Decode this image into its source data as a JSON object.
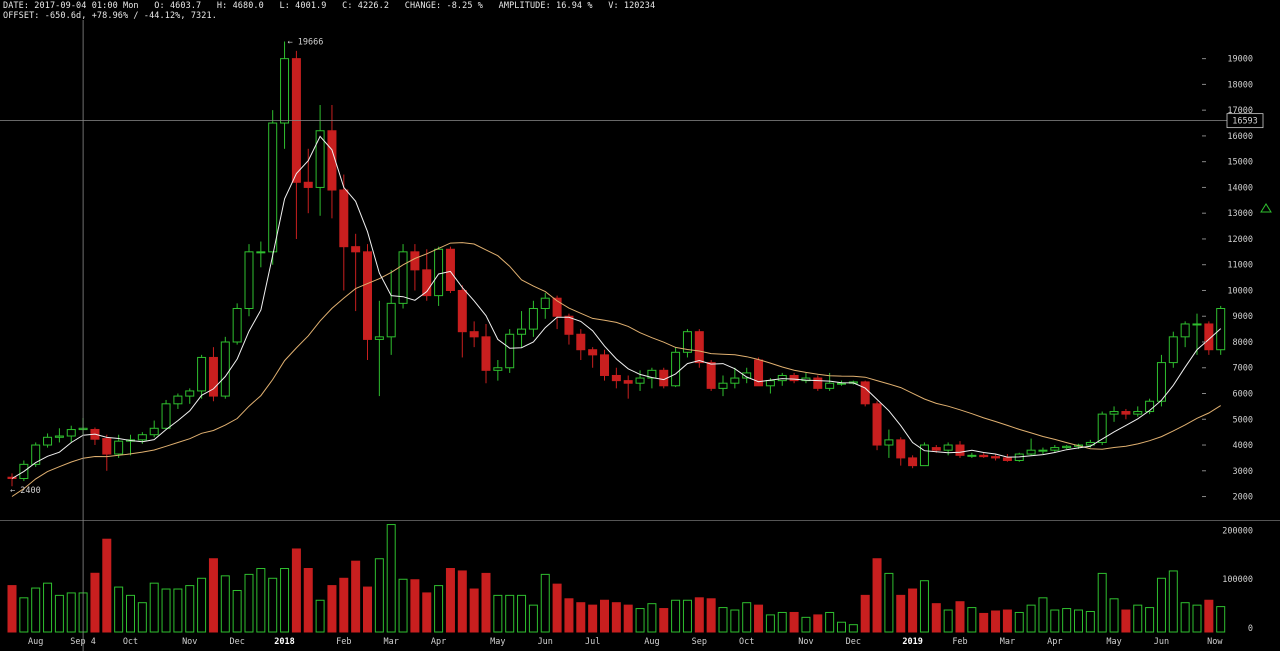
{
  "header": {
    "line1": "DATE: 2017-09-04 01:00 Mon   O: 4603.7   H: 4680.0   L: 4001.9   C: 4226.2   CHANGE: -8.25 %   AMPLITUDE: 16.94 %   V: 120234",
    "line2": "OFFSET: -650.6d, +78.96% / -44.12%, 7321."
  },
  "colors": {
    "background": "#000000",
    "up": "#2fbf2f",
    "down": "#c81f1f",
    "ma_short": "#f0f0f0",
    "ma_long": "#e0b070",
    "crosshair": "#8a8a8a",
    "axis_text": "#d0d0d0"
  },
  "crosshair": {
    "price_label": "16593",
    "date_label": "Sep 4"
  },
  "annotations": {
    "high_label": "← 19666",
    "low_label": "← 2400"
  },
  "chart_data": {
    "type": "candlestick",
    "period": "weekly",
    "y_ticks": [
      2000,
      3000,
      4000,
      5000,
      6000,
      7000,
      8000,
      9000,
      10000,
      11000,
      12000,
      13000,
      14000,
      15000,
      16000,
      17000,
      18000,
      19000
    ],
    "ylim": [
      1400,
      20500
    ],
    "volume_ticks": [
      {
        "value": 0,
        "label": "0"
      },
      {
        "value": 100000,
        "label": "100000"
      },
      {
        "value": 200000,
        "label": "200000"
      }
    ],
    "volume_ylim": [
      0,
      215000
    ],
    "x_labels": [
      {
        "label": "Aug",
        "i": 2
      },
      {
        "label": "Sep 4",
        "i": 6
      },
      {
        "label": "Oct",
        "i": 10
      },
      {
        "label": "Nov",
        "i": 15
      },
      {
        "label": "Dec",
        "i": 19
      },
      {
        "label": "2018",
        "i": 23,
        "bold": true
      },
      {
        "label": "Feb",
        "i": 28
      },
      {
        "label": "Mar",
        "i": 32
      },
      {
        "label": "Apr",
        "i": 36
      },
      {
        "label": "May",
        "i": 41
      },
      {
        "label": "Jun",
        "i": 45
      },
      {
        "label": "Jul",
        "i": 49
      },
      {
        "label": "Aug",
        "i": 54
      },
      {
        "label": "Sep",
        "i": 58
      },
      {
        "label": "Oct",
        "i": 62
      },
      {
        "label": "Nov",
        "i": 67
      },
      {
        "label": "Dec",
        "i": 71
      },
      {
        "label": "2019",
        "i": 76,
        "bold": true
      },
      {
        "label": "Feb",
        "i": 80
      },
      {
        "label": "Mar",
        "i": 84
      },
      {
        "label": "Apr",
        "i": 88
      },
      {
        "label": "May",
        "i": 93
      },
      {
        "label": "Jun",
        "i": 97
      },
      {
        "label": "Now",
        "i": 101.5
      }
    ],
    "candles": [
      {
        "o": 2750,
        "h": 2900,
        "l": 2400,
        "c": 2700,
        "v": 95000
      },
      {
        "o": 2700,
        "h": 3400,
        "l": 2600,
        "c": 3250,
        "v": 70000
      },
      {
        "o": 3250,
        "h": 4100,
        "l": 3150,
        "c": 4000,
        "v": 90000
      },
      {
        "o": 4000,
        "h": 4450,
        "l": 3900,
        "c": 4300,
        "v": 100000
      },
      {
        "o": 4300,
        "h": 4650,
        "l": 4100,
        "c": 4350,
        "v": 75000
      },
      {
        "o": 4350,
        "h": 4750,
        "l": 4100,
        "c": 4600,
        "v": 80000
      },
      {
        "o": 4600,
        "h": 5050,
        "l": 4400,
        "c": 4650,
        "v": 80000
      },
      {
        "o": 4603.7,
        "h": 4680,
        "l": 4001.9,
        "c": 4226.2,
        "v": 120234
      },
      {
        "o": 4250,
        "h": 4400,
        "l": 3000,
        "c": 3650,
        "v": 190000
      },
      {
        "o": 3650,
        "h": 4400,
        "l": 3500,
        "c": 4150,
        "v": 92000
      },
      {
        "o": 4150,
        "h": 4400,
        "l": 3600,
        "c": 4200,
        "v": 75000
      },
      {
        "o": 4200,
        "h": 4500,
        "l": 4050,
        "c": 4400,
        "v": 60000
      },
      {
        "o": 4400,
        "h": 4950,
        "l": 4300,
        "c": 4650,
        "v": 100000
      },
      {
        "o": 4650,
        "h": 5750,
        "l": 4600,
        "c": 5600,
        "v": 88000
      },
      {
        "o": 5600,
        "h": 6000,
        "l": 5400,
        "c": 5900,
        "v": 88000
      },
      {
        "o": 5900,
        "h": 6200,
        "l": 5600,
        "c": 6100,
        "v": 95000
      },
      {
        "o": 6100,
        "h": 7500,
        "l": 5800,
        "c": 7400,
        "v": 110000
      },
      {
        "o": 7400,
        "h": 7800,
        "l": 5700,
        "c": 5900,
        "v": 150000
      },
      {
        "o": 5900,
        "h": 8200,
        "l": 5800,
        "c": 8000,
        "v": 115000
      },
      {
        "o": 8000,
        "h": 9500,
        "l": 7900,
        "c": 9300,
        "v": 85000
      },
      {
        "o": 9300,
        "h": 11800,
        "l": 9000,
        "c": 11500,
        "v": 118000
      },
      {
        "o": 11500,
        "h": 11900,
        "l": 10900,
        "c": 11500,
        "v": 130000
      },
      {
        "o": 11500,
        "h": 17000,
        "l": 11000,
        "c": 16500,
        "v": 110000
      },
      {
        "o": 16500,
        "h": 19666,
        "l": 15500,
        "c": 19000,
        "v": 130000
      },
      {
        "o": 19000,
        "h": 19300,
        "l": 12000,
        "c": 14200,
        "v": 170000
      },
      {
        "o": 14200,
        "h": 15500,
        "l": 13000,
        "c": 14000,
        "v": 130000
      },
      {
        "o": 14000,
        "h": 17200,
        "l": 12900,
        "c": 16200,
        "v": 65000
      },
      {
        "o": 16200,
        "h": 17200,
        "l": 12800,
        "c": 13900,
        "v": 95000
      },
      {
        "o": 13900,
        "h": 14500,
        "l": 10000,
        "c": 11700,
        "v": 110000
      },
      {
        "o": 11700,
        "h": 12200,
        "l": 9200,
        "c": 11500,
        "v": 145000
      },
      {
        "o": 11500,
        "h": 11800,
        "l": 7300,
        "c": 8100,
        "v": 92000
      },
      {
        "o": 8100,
        "h": 9600,
        "l": 5900,
        "c": 8200,
        "v": 150000
      },
      {
        "o": 8200,
        "h": 10800,
        "l": 7500,
        "c": 9500,
        "v": 220000
      },
      {
        "o": 9500,
        "h": 11800,
        "l": 9300,
        "c": 11500,
        "v": 108000
      },
      {
        "o": 11500,
        "h": 11800,
        "l": 10000,
        "c": 10800,
        "v": 107000
      },
      {
        "o": 10800,
        "h": 11600,
        "l": 9600,
        "c": 9800,
        "v": 80000
      },
      {
        "o": 9800,
        "h": 11700,
        "l": 9400,
        "c": 11600,
        "v": 95000
      },
      {
        "o": 11600,
        "h": 11700,
        "l": 9900,
        "c": 10000,
        "v": 130000
      },
      {
        "o": 10000,
        "h": 10200,
        "l": 7400,
        "c": 8400,
        "v": 125000
      },
      {
        "o": 8400,
        "h": 8800,
        "l": 7800,
        "c": 8200,
        "v": 88000
      },
      {
        "o": 8200,
        "h": 8700,
        "l": 6400,
        "c": 6900,
        "v": 120000
      },
      {
        "o": 6900,
        "h": 7300,
        "l": 6500,
        "c": 7000,
        "v": 75000
      },
      {
        "o": 7000,
        "h": 8500,
        "l": 6800,
        "c": 8300,
        "v": 75000
      },
      {
        "o": 8300,
        "h": 9200,
        "l": 7800,
        "c": 8500,
        "v": 75000
      },
      {
        "o": 8500,
        "h": 9600,
        "l": 8200,
        "c": 9300,
        "v": 55000
      },
      {
        "o": 9300,
        "h": 9900,
        "l": 8900,
        "c": 9700,
        "v": 118000
      },
      {
        "o": 9700,
        "h": 9800,
        "l": 8500,
        "c": 9000,
        "v": 98000
      },
      {
        "o": 9000,
        "h": 9100,
        "l": 7900,
        "c": 8300,
        "v": 68000
      },
      {
        "o": 8300,
        "h": 8500,
        "l": 7300,
        "c": 7700,
        "v": 60000
      },
      {
        "o": 7700,
        "h": 7800,
        "l": 7000,
        "c": 7500,
        "v": 55000
      },
      {
        "o": 7500,
        "h": 7700,
        "l": 6500,
        "c": 6700,
        "v": 65000
      },
      {
        "o": 6700,
        "h": 7000,
        "l": 6200,
        "c": 6500,
        "v": 60000
      },
      {
        "o": 6500,
        "h": 6700,
        "l": 5800,
        "c": 6400,
        "v": 55000
      },
      {
        "o": 6400,
        "h": 6900,
        "l": 6100,
        "c": 6600,
        "v": 48000
      },
      {
        "o": 6600,
        "h": 7000,
        "l": 6200,
        "c": 6900,
        "v": 58000
      },
      {
        "o": 6900,
        "h": 7000,
        "l": 6200,
        "c": 6300,
        "v": 48000
      },
      {
        "o": 6300,
        "h": 7800,
        "l": 6250,
        "c": 7600,
        "v": 65000
      },
      {
        "o": 7600,
        "h": 8500,
        "l": 7400,
        "c": 8400,
        "v": 65000
      },
      {
        "o": 8400,
        "h": 8500,
        "l": 7000,
        "c": 7200,
        "v": 70000
      },
      {
        "o": 7200,
        "h": 7300,
        "l": 6100,
        "c": 6200,
        "v": 68000
      },
      {
        "o": 6200,
        "h": 6700,
        "l": 5900,
        "c": 6400,
        "v": 50000
      },
      {
        "o": 6400,
        "h": 7000,
        "l": 6200,
        "c": 6600,
        "v": 45000
      },
      {
        "o": 6600,
        "h": 7000,
        "l": 6400,
        "c": 6800,
        "v": 60000
      },
      {
        "o": 7300,
        "h": 7400,
        "l": 6300,
        "c": 6300,
        "v": 55000
      },
      {
        "o": 6300,
        "h": 6600,
        "l": 6000,
        "c": 6500,
        "v": 35000
      },
      {
        "o": 6500,
        "h": 6800,
        "l": 6300,
        "c": 6700,
        "v": 40000
      },
      {
        "o": 6700,
        "h": 6800,
        "l": 6400,
        "c": 6500,
        "v": 40000
      },
      {
        "o": 6500,
        "h": 6800,
        "l": 6400,
        "c": 6600,
        "v": 30000
      },
      {
        "o": 6600,
        "h": 6700,
        "l": 6100,
        "c": 6200,
        "v": 35000
      },
      {
        "o": 6200,
        "h": 6800,
        "l": 6100,
        "c": 6400,
        "v": 40000
      },
      {
        "o": 6400,
        "h": 6500,
        "l": 6300,
        "c": 6400,
        "v": 20000
      },
      {
        "o": 6400,
        "h": 6500,
        "l": 6350,
        "c": 6450,
        "v": 15000
      },
      {
        "o": 6450,
        "h": 6500,
        "l": 5500,
        "c": 5600,
        "v": 75000
      },
      {
        "o": 5600,
        "h": 5700,
        "l": 3800,
        "c": 4000,
        "v": 150000
      },
      {
        "o": 4000,
        "h": 4600,
        "l": 3500,
        "c": 4200,
        "v": 120000
      },
      {
        "o": 4200,
        "h": 4300,
        "l": 3200,
        "c": 3500,
        "v": 75000
      },
      {
        "o": 3500,
        "h": 3600,
        "l": 3100,
        "c": 3200,
        "v": 88000
      },
      {
        "o": 3200,
        "h": 4100,
        "l": 3200,
        "c": 4000,
        "v": 105000
      },
      {
        "o": 3900,
        "h": 4000,
        "l": 3700,
        "c": 3800,
        "v": 58000
      },
      {
        "o": 3800,
        "h": 4100,
        "l": 3600,
        "c": 4000,
        "v": 45000
      },
      {
        "o": 4000,
        "h": 4150,
        "l": 3500,
        "c": 3600,
        "v": 62000
      },
      {
        "o": 3600,
        "h": 3700,
        "l": 3500,
        "c": 3600,
        "v": 50000
      },
      {
        "o": 3600,
        "h": 3700,
        "l": 3500,
        "c": 3550,
        "v": 38000
      },
      {
        "o": 3550,
        "h": 3650,
        "l": 3400,
        "c": 3500,
        "v": 43000
      },
      {
        "o": 3500,
        "h": 3650,
        "l": 3350,
        "c": 3400,
        "v": 45000
      },
      {
        "o": 3400,
        "h": 3700,
        "l": 3350,
        "c": 3650,
        "v": 40000
      },
      {
        "o": 3650,
        "h": 4250,
        "l": 3600,
        "c": 3800,
        "v": 55000
      },
      {
        "o": 3800,
        "h": 3900,
        "l": 3650,
        "c": 3800,
        "v": 70000
      },
      {
        "o": 3800,
        "h": 4000,
        "l": 3700,
        "c": 3900,
        "v": 45000
      },
      {
        "o": 3900,
        "h": 4000,
        "l": 3850,
        "c": 3950,
        "v": 48000
      },
      {
        "o": 3950,
        "h": 4050,
        "l": 3850,
        "c": 4000,
        "v": 45000
      },
      {
        "o": 4000,
        "h": 4200,
        "l": 3900,
        "c": 4100,
        "v": 42000
      },
      {
        "o": 4100,
        "h": 5300,
        "l": 4000,
        "c": 5200,
        "v": 120000
      },
      {
        "o": 5200,
        "h": 5500,
        "l": 4900,
        "c": 5300,
        "v": 68000
      },
      {
        "o": 5300,
        "h": 5400,
        "l": 5000,
        "c": 5200,
        "v": 45000
      },
      {
        "o": 5200,
        "h": 5500,
        "l": 5100,
        "c": 5300,
        "v": 55000
      },
      {
        "o": 5300,
        "h": 5800,
        "l": 5200,
        "c": 5700,
        "v": 50000
      },
      {
        "o": 5700,
        "h": 7500,
        "l": 5500,
        "c": 7200,
        "v": 110000
      },
      {
        "o": 7200,
        "h": 8400,
        "l": 7000,
        "c": 8200,
        "v": 125000
      },
      {
        "o": 8200,
        "h": 8800,
        "l": 7800,
        "c": 8700,
        "v": 60000
      },
      {
        "o": 8700,
        "h": 9100,
        "l": 7500,
        "c": 8700,
        "v": 55000
      },
      {
        "o": 8700,
        "h": 8800,
        "l": 7500,
        "c": 7700,
        "v": 65000
      },
      {
        "o": 7700,
        "h": 9400,
        "l": 7500,
        "c": 9300,
        "v": 52000
      }
    ]
  }
}
